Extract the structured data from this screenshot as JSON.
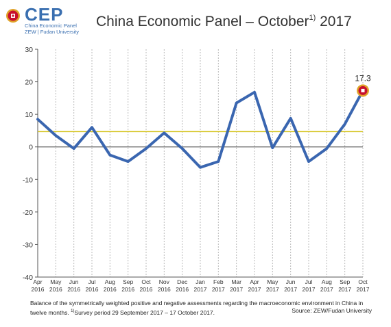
{
  "logo": {
    "brand": "CEP",
    "line1": "China Economic Panel",
    "line2": "ZEW | Fudan University"
  },
  "title": {
    "main": "China Economic Panel – October",
    "sup": "1)",
    "year": " 2017"
  },
  "footnote": {
    "text1": "Balance of the symmetrically weighted positive and negative assessments regarding the macroeconomic environment in China in twelve months. ",
    "sup": "1)",
    "text2": "Survey period 29 September 2017 – 17 October 2017."
  },
  "source": "Source: ZEW/Fudan University",
  "colors": {
    "line": "#3a66b0",
    "average": "#d4c21a",
    "zero": "#666666",
    "marker": "#c8102e",
    "marker_ring": "#e0a32a"
  },
  "chart_data": {
    "type": "line",
    "x": [
      "Apr 2016",
      "May 2016",
      "Jun 2016",
      "Jul 2016",
      "Aug 2016",
      "Sep 2016",
      "Oct 2016",
      "Nov 2016",
      "Dec 2016",
      "Jan 2017",
      "Feb 2017",
      "Mar 2017",
      "Apr 2017",
      "May 2017",
      "Jun 2017",
      "Jul 2017",
      "Aug 2017",
      "Sep 2017",
      "Oct 2017"
    ],
    "x_tick_labels": [
      [
        "Apr",
        "2016"
      ],
      [
        "May",
        "2016"
      ],
      [
        "Jun",
        "2016"
      ],
      [
        "Jul",
        "2016"
      ],
      [
        "Aug",
        "2016"
      ],
      [
        "Sep",
        "2016"
      ],
      [
        "Oct",
        "2016"
      ],
      [
        "Nov",
        "2016"
      ],
      [
        "Dec",
        "2016"
      ],
      [
        "Jan",
        "2017"
      ],
      [
        "Feb",
        "2017"
      ],
      [
        "Mar",
        "2017"
      ],
      [
        "Apr",
        "2017"
      ],
      [
        "May",
        "2017"
      ],
      [
        "Jun",
        "2017"
      ],
      [
        "Jul",
        "2017"
      ],
      [
        "Aug",
        "2017"
      ],
      [
        "Sep",
        "2017"
      ],
      [
        "Oct",
        "2017"
      ]
    ],
    "values": [
      8.5,
      3.5,
      -0.5,
      6.0,
      -2.5,
      -4.5,
      -0.5,
      4.3,
      -0.5,
      -6.3,
      -4.5,
      13.5,
      16.8,
      -0.3,
      8.8,
      -4.5,
      -0.5,
      7.0,
      17.3
    ],
    "average": 4.7,
    "ylim": [
      -40,
      30
    ],
    "yticks": [
      30,
      20,
      10,
      0,
      -10,
      -20,
      -30,
      -40
    ],
    "last_label": "17.3",
    "grid": "vertical dotted"
  }
}
